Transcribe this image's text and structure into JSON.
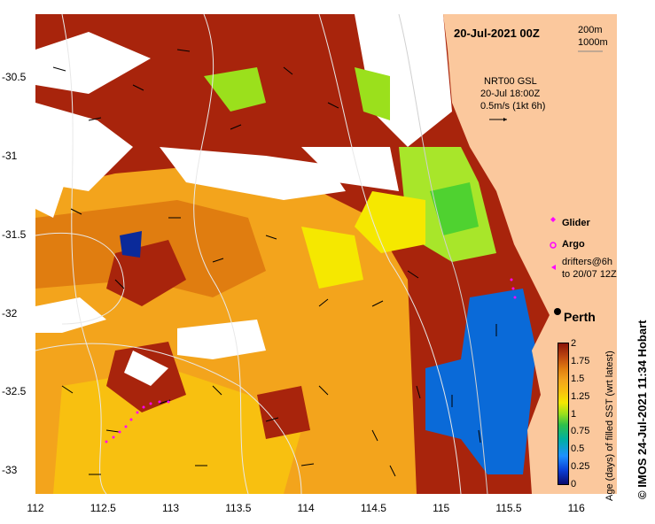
{
  "title": "20-Jul-2021 00Z",
  "depth_contours": {
    "first": "200m",
    "second": "1000m"
  },
  "current_info": {
    "line1": "NRT00 GSL",
    "line2": "20-Jul 18:00Z",
    "line3": "0.5m/s (1kt 6h)"
  },
  "legend": {
    "glider": "Glider",
    "argo": "Argo",
    "drifters_line1": "drifters@6h",
    "drifters_line2": "to 20/07 12Z"
  },
  "city": "Perth",
  "colorbar": {
    "title": "Age (days) of filled SST (wrt latest)",
    "ticks": [
      "0",
      "0.25",
      "0.5",
      "0.75",
      "1",
      "1.25",
      "1.5",
      "1.75",
      "2"
    ]
  },
  "credit": "© IMOS 24-Jul-2021 11:34 Hobart",
  "axes": {
    "x_ticks": [
      "112",
      "112.5",
      "113",
      "113.5",
      "114",
      "114.5",
      "115",
      "115.5",
      "116"
    ],
    "y_ticks": [
      "-30.5",
      "-31",
      "-31.5",
      "-32",
      "-32.5",
      "-33"
    ],
    "lon_range": [
      112,
      116.3
    ],
    "lat_range": [
      -30.1,
      -33.15
    ]
  },
  "colors": {
    "land": "#fbc89d",
    "ocean_old": "#a81c0a",
    "ocean_mid": "#f3a41c",
    "glider": "#ff00ff"
  }
}
